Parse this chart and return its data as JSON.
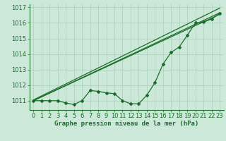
{
  "title": "Graphe pression niveau de la mer (hPa)",
  "bg_color": "#cce8d8",
  "grid_color": "#aacfbc",
  "line_color": "#1a6e2a",
  "marker_color": "#1a6e2a",
  "xlim": [
    -0.5,
    23.5
  ],
  "ylim": [
    1010.4,
    1017.2
  ],
  "yticks": [
    1011,
    1012,
    1013,
    1014,
    1015,
    1016,
    1017
  ],
  "xticks": [
    0,
    1,
    2,
    3,
    4,
    5,
    6,
    7,
    8,
    9,
    10,
    11,
    12,
    13,
    14,
    15,
    16,
    17,
    18,
    19,
    20,
    21,
    22,
    23
  ],
  "line1_x": [
    0,
    1,
    2,
    3,
    4,
    5,
    6,
    7,
    8,
    9,
    10,
    11,
    12,
    13,
    14,
    15,
    16,
    17,
    18,
    19,
    20,
    21,
    22,
    23
  ],
  "line1_y": [
    1011.0,
    1011.0,
    1011.0,
    1011.0,
    1010.85,
    1010.75,
    1011.0,
    1011.65,
    1011.6,
    1011.5,
    1011.45,
    1011.0,
    1010.8,
    1010.8,
    1011.35,
    1012.15,
    1013.35,
    1014.1,
    1014.45,
    1015.2,
    1016.0,
    1016.05,
    1016.25,
    1016.6
  ],
  "line2_x": [
    0,
    23
  ],
  "line2_y": [
    1011.0,
    1016.55
  ],
  "line3_x": [
    0,
    23
  ],
  "line3_y": [
    1011.0,
    1016.65
  ],
  "line4_x": [
    0,
    23
  ],
  "line4_y": [
    1011.05,
    1016.95
  ],
  "xlabel_fontsize": 6.5,
  "tick_fontsize": 6.0,
  "ylabel_fontsize": 6.0
}
